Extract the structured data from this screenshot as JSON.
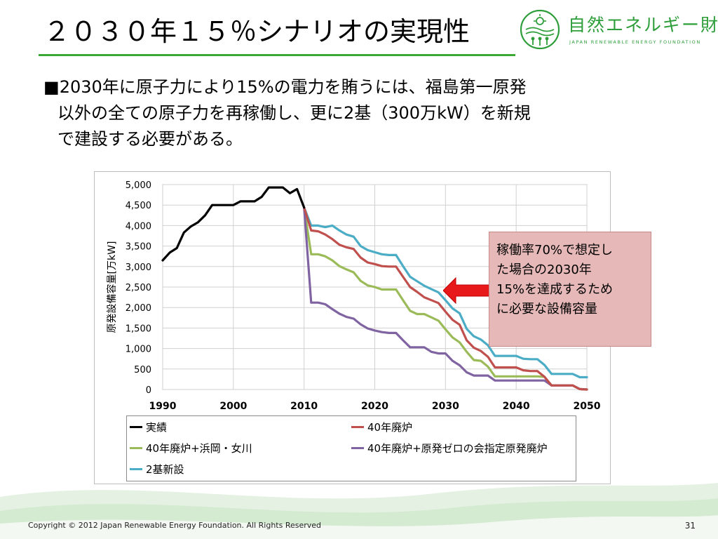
{
  "slide": {
    "title": "２０３０年１５％シナリオの実現性",
    "bullet_marker": "■",
    "bullet_lines": [
      "2030年に原子力により15%の電力を賄うには、福島第一原発",
      "以外の全ての原子力を再稼働し、更に2基（300万kW）を新規",
      "で建設する必要がある。"
    ],
    "accent_color": "#3aaa35"
  },
  "logo": {
    "name": "自然エネルギー財団",
    "subtitle": "JAPAN RENEWABLE ENERGY FOUNDATION",
    "icon": "sun-tree-people-icon",
    "color": "#2e9e3a"
  },
  "callout": {
    "lines": [
      "稼働率70%で想定し",
      "た場合の2030年",
      "15%を達成するため",
      "に必要な設備容量"
    ],
    "arrow_color": "#e8191a"
  },
  "footer": {
    "copyright": "Copyright © 2012 Japan Renewable Energy Foundation. All Rights Reserved",
    "page_number": "31"
  },
  "chart_data": {
    "type": "line",
    "ylabel": "原発設備容量[万kW]",
    "xlim": [
      1990,
      2050
    ],
    "ylim": [
      0,
      5000
    ],
    "x_ticks": [
      1990,
      2000,
      2010,
      2020,
      2030,
      2040,
      2050
    ],
    "y_ticks": [
      0,
      500,
      1000,
      1500,
      2000,
      2500,
      3000,
      3500,
      4000,
      4500,
      5000
    ],
    "y_tick_labels": [
      "0",
      "500",
      "1,000",
      "1,500",
      "2,000",
      "2,500",
      "3,000",
      "3,500",
      "4,000",
      "4,500",
      "5,000"
    ],
    "grid": true,
    "legend_position": "bottom",
    "series": [
      {
        "name": "実績",
        "color": "#000000",
        "points": [
          [
            1990,
            3150
          ],
          [
            1991,
            3340
          ],
          [
            1992,
            3450
          ],
          [
            1993,
            3830
          ],
          [
            1994,
            3980
          ],
          [
            1995,
            4080
          ],
          [
            1996,
            4250
          ],
          [
            1997,
            4500
          ],
          [
            1998,
            4500
          ],
          [
            1999,
            4500
          ],
          [
            2000,
            4500
          ],
          [
            2001,
            4590
          ],
          [
            2002,
            4590
          ],
          [
            2003,
            4590
          ],
          [
            2004,
            4700
          ],
          [
            2005,
            4930
          ],
          [
            2006,
            4930
          ],
          [
            2007,
            4930
          ],
          [
            2008,
            4790
          ],
          [
            2009,
            4890
          ],
          [
            2010,
            4440
          ]
        ]
      },
      {
        "name": "40年廃炉",
        "color": "#c0504d",
        "points": [
          [
            2010,
            4440
          ],
          [
            2011,
            3880
          ],
          [
            2012,
            3860
          ],
          [
            2013,
            3780
          ],
          [
            2014,
            3670
          ],
          [
            2015,
            3530
          ],
          [
            2016,
            3470
          ],
          [
            2017,
            3430
          ],
          [
            2018,
            3220
          ],
          [
            2019,
            3100
          ],
          [
            2020,
            3060
          ],
          [
            2021,
            3010
          ],
          [
            2022,
            3000
          ],
          [
            2023,
            3000
          ],
          [
            2024,
            2750
          ],
          [
            2025,
            2500
          ],
          [
            2026,
            2380
          ],
          [
            2027,
            2250
          ],
          [
            2028,
            2180
          ],
          [
            2029,
            2110
          ],
          [
            2030,
            1900
          ],
          [
            2031,
            1700
          ],
          [
            2032,
            1580
          ],
          [
            2033,
            1200
          ],
          [
            2034,
            1020
          ],
          [
            2035,
            940
          ],
          [
            2036,
            800
          ],
          [
            2037,
            540
          ],
          [
            2038,
            540
          ],
          [
            2039,
            540
          ],
          [
            2040,
            540
          ],
          [
            2041,
            470
          ],
          [
            2042,
            450
          ],
          [
            2043,
            450
          ],
          [
            2044,
            310
          ],
          [
            2045,
            100
          ],
          [
            2046,
            100
          ],
          [
            2047,
            100
          ],
          [
            2048,
            100
          ],
          [
            2049,
            10
          ],
          [
            2050,
            0
          ]
        ]
      },
      {
        "name": "40年廃炉+浜岡・女川",
        "color": "#9bbb59",
        "points": [
          [
            2010,
            4440
          ],
          [
            2011,
            3300
          ],
          [
            2012,
            3300
          ],
          [
            2013,
            3250
          ],
          [
            2014,
            3150
          ],
          [
            2015,
            3010
          ],
          [
            2016,
            2930
          ],
          [
            2017,
            2860
          ],
          [
            2018,
            2650
          ],
          [
            2019,
            2540
          ],
          [
            2020,
            2500
          ],
          [
            2021,
            2440
          ],
          [
            2022,
            2440
          ],
          [
            2023,
            2440
          ],
          [
            2024,
            2180
          ],
          [
            2025,
            1920
          ],
          [
            2026,
            1840
          ],
          [
            2027,
            1840
          ],
          [
            2028,
            1760
          ],
          [
            2029,
            1680
          ],
          [
            2030,
            1470
          ],
          [
            2031,
            1270
          ],
          [
            2032,
            1150
          ],
          [
            2033,
            920
          ],
          [
            2034,
            720
          ],
          [
            2035,
            700
          ],
          [
            2036,
            560
          ],
          [
            2037,
            320
          ],
          [
            2038,
            320
          ],
          [
            2039,
            320
          ],
          [
            2040,
            320
          ],
          [
            2041,
            320
          ],
          [
            2042,
            320
          ],
          [
            2043,
            320
          ],
          [
            2044,
            310
          ],
          [
            2045,
            100
          ],
          [
            2046,
            100
          ],
          [
            2047,
            100
          ],
          [
            2048,
            100
          ],
          [
            2049,
            10
          ],
          [
            2050,
            0
          ]
        ]
      },
      {
        "name": "40年廃炉+原発ゼロの会指定原発廃炉",
        "color": "#8064a2",
        "points": [
          [
            2010,
            4440
          ],
          [
            2011,
            2120
          ],
          [
            2012,
            2120
          ],
          [
            2013,
            2080
          ],
          [
            2014,
            1960
          ],
          [
            2015,
            1850
          ],
          [
            2016,
            1770
          ],
          [
            2017,
            1730
          ],
          [
            2018,
            1590
          ],
          [
            2019,
            1490
          ],
          [
            2020,
            1440
          ],
          [
            2021,
            1400
          ],
          [
            2022,
            1380
          ],
          [
            2023,
            1380
          ],
          [
            2024,
            1200
          ],
          [
            2025,
            1030
          ],
          [
            2026,
            1030
          ],
          [
            2027,
            1030
          ],
          [
            2028,
            920
          ],
          [
            2029,
            880
          ],
          [
            2030,
            880
          ],
          [
            2031,
            700
          ],
          [
            2032,
            590
          ],
          [
            2033,
            420
          ],
          [
            2034,
            340
          ],
          [
            2035,
            340
          ],
          [
            2036,
            340
          ],
          [
            2037,
            220
          ],
          [
            2038,
            220
          ],
          [
            2039,
            220
          ],
          [
            2040,
            220
          ],
          [
            2041,
            220
          ],
          [
            2042,
            220
          ],
          [
            2043,
            220
          ],
          [
            2044,
            220
          ],
          [
            2045,
            100
          ],
          [
            2046,
            100
          ],
          [
            2047,
            100
          ],
          [
            2048,
            100
          ],
          [
            2049,
            10
          ],
          [
            2050,
            0
          ]
        ]
      },
      {
        "name": "2基新設",
        "color": "#4bacc6",
        "points": [
          [
            2010,
            4440
          ],
          [
            2011,
            4000
          ],
          [
            2012,
            4000
          ],
          [
            2013,
            3960
          ],
          [
            2014,
            4000
          ],
          [
            2015,
            3880
          ],
          [
            2016,
            3780
          ],
          [
            2017,
            3730
          ],
          [
            2018,
            3500
          ],
          [
            2019,
            3400
          ],
          [
            2020,
            3350
          ],
          [
            2021,
            3300
          ],
          [
            2022,
            3280
          ],
          [
            2023,
            3280
          ],
          [
            2024,
            3010
          ],
          [
            2025,
            2750
          ],
          [
            2026,
            2640
          ],
          [
            2027,
            2530
          ],
          [
            2028,
            2450
          ],
          [
            2029,
            2370
          ],
          [
            2030,
            2180
          ],
          [
            2031,
            1980
          ],
          [
            2032,
            1860
          ],
          [
            2033,
            1480
          ],
          [
            2034,
            1300
          ],
          [
            2035,
            1220
          ],
          [
            2036,
            1080
          ],
          [
            2037,
            820
          ],
          [
            2038,
            820
          ],
          [
            2039,
            820
          ],
          [
            2040,
            820
          ],
          [
            2041,
            750
          ],
          [
            2042,
            740
          ],
          [
            2043,
            740
          ],
          [
            2044,
            600
          ],
          [
            2045,
            380
          ],
          [
            2046,
            380
          ],
          [
            2047,
            380
          ],
          [
            2048,
            380
          ],
          [
            2049,
            300
          ],
          [
            2050,
            300
          ]
        ]
      }
    ]
  }
}
